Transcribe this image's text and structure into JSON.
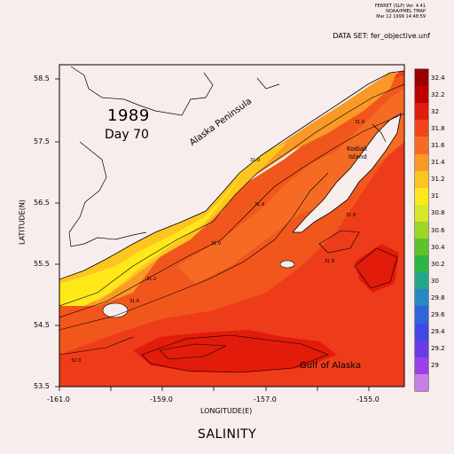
{
  "header": {
    "line1": "FERRET (SLP) Ver. 4.41",
    "line2": "NOAA/PMEL TMAP",
    "line3": "Mar 12 1999 14:48:59",
    "dataset": "DATA SET: fer_objective.unf"
  },
  "map": {
    "year": "1989",
    "day": "Day 70",
    "labels": {
      "alaska_peninsula": "Alaska Peninsula",
      "kodiak": "Kodiak",
      "island": "Island",
      "gulf": "Gulf of Alaska"
    },
    "x_axis": {
      "label": "LONGITUDE(E)",
      "ticks": [
        "-161.0",
        "-159.0",
        "-157.0",
        "-155.0"
      ]
    },
    "y_axis": {
      "label": "LATITUDE(N)",
      "ticks": [
        "58.5",
        "57.5",
        "56.5",
        "55.5",
        "54.5",
        "53.5"
      ]
    },
    "contour_labels": [
      "31.4",
      "31.6",
      "31.2",
      "31.0",
      "31.0",
      "31.8",
      "31.8",
      "31.6",
      "32.0"
    ]
  },
  "colorbar": {
    "levels": [
      "32.4",
      "32.2",
      "32",
      "31.8",
      "31.6",
      "31.4",
      "31.2",
      "31",
      "30.8",
      "30.6",
      "30.4",
      "30.2",
      "30",
      "29.8",
      "29.6",
      "29.4",
      "29.2",
      "29"
    ],
    "colors": [
      "#9a0000",
      "#c00000",
      "#e21b0b",
      "#f2431a",
      "#f66b24",
      "#f99a26",
      "#fcc520",
      "#ffe81a",
      "#d8e62a",
      "#9ed626",
      "#5cc42a",
      "#2bb542",
      "#23a78a",
      "#2889c2",
      "#3064d8",
      "#4346e6",
      "#6a3ae6",
      "#9b40e6",
      "#c77ee8"
    ]
  },
  "footer": {
    "title": "SALINITY"
  }
}
